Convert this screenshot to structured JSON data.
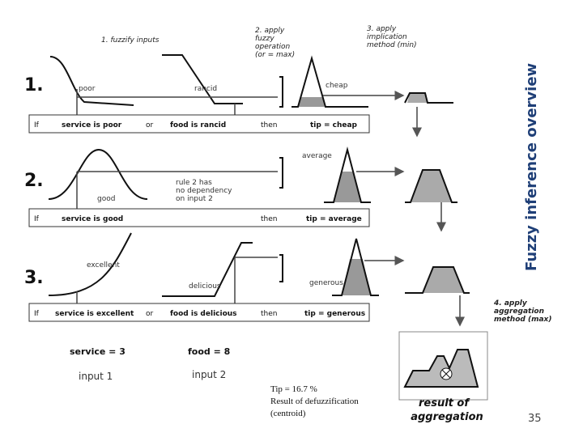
{
  "title": "Fuzzy inference overview",
  "page_number": "35",
  "steps": [
    {
      "lines": [
        "1. fuzzify inputs"
      ]
    },
    {
      "lines": [
        "2. apply",
        "fuzzy",
        "operation",
        "(or = max)"
      ]
    },
    {
      "lines": [
        "3. apply",
        "implication",
        "method (min)"
      ]
    },
    {
      "lines": [
        "4. apply",
        "aggregation",
        "method (max)"
      ]
    }
  ],
  "rows": [
    {
      "number": "1.",
      "labels": [
        "poor",
        "rancid",
        "cheap"
      ],
      "rule": [
        "If",
        "service is poor",
        "or",
        "food is rancid",
        "then",
        "tip = cheap"
      ]
    },
    {
      "number": "2.",
      "labels": [
        "good",
        "average"
      ],
      "note": [
        "rule 2 has",
        "no dependency",
        "on input 2"
      ],
      "rule": [
        "If",
        "service is good",
        "then",
        "tip = average"
      ]
    },
    {
      "number": "3.",
      "labels": [
        "excellent",
        "delicious",
        "generous"
      ],
      "rule": [
        "If",
        "service is excellent",
        "or",
        "food is delicious",
        "then",
        "tip = generous"
      ]
    }
  ],
  "inputs": {
    "service": "service = 3",
    "food": "food = 8",
    "input1": "input 1",
    "input2": "input 2"
  },
  "result": {
    "lines": [
      "Tip = 16.7 %",
      "Result of defuzzification",
      "(centroid)"
    ]
  },
  "aggregation_label": [
    "result of",
    "aggregation"
  ]
}
